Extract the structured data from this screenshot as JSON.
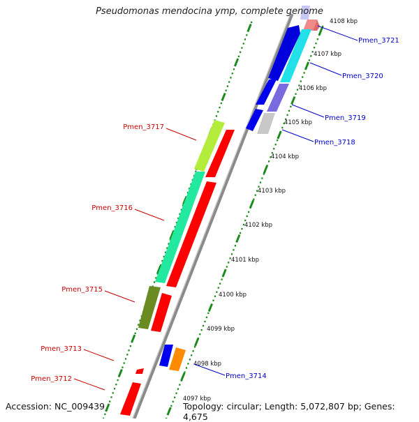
{
  "map": {
    "title": "Pseudomonas mendocina ymp, complete genome",
    "accession": "Accession: NC_009439",
    "summary": "Topology: circular; Length: 5,072,807 bp; Genes: 4,675",
    "colors": {
      "forward_label": "#0000cc",
      "reverse_label": "#cc0000",
      "dots": "#1a8a1a",
      "backbone": "#8a8a8a"
    },
    "ticks": [
      {
        "label": "4097 kbp"
      },
      {
        "label": "4098 kbp"
      },
      {
        "label": "4099 kbp"
      },
      {
        "label": "4100 kbp"
      },
      {
        "label": "4101 kbp"
      },
      {
        "label": "4102 kbp"
      },
      {
        "label": "4103 kbp"
      },
      {
        "label": "4104 kbp"
      },
      {
        "label": "4105 kbp"
      },
      {
        "label": "4106 kbp"
      },
      {
        "label": "4107 kbp"
      },
      {
        "label": "4108 kbp"
      }
    ],
    "forward_labels": [
      {
        "name": "Pmen_3721"
      },
      {
        "name": "Pmen_3720"
      },
      {
        "name": "Pmen_3719"
      },
      {
        "name": "Pmen_3718"
      },
      {
        "name": "Pmen_3714"
      }
    ],
    "reverse_labels": [
      {
        "name": "Pmen_3717"
      },
      {
        "name": "Pmen_3716"
      },
      {
        "name": "Pmen_3715"
      },
      {
        "name": "Pmen_3713"
      },
      {
        "name": "Pmen_3712"
      }
    ]
  }
}
